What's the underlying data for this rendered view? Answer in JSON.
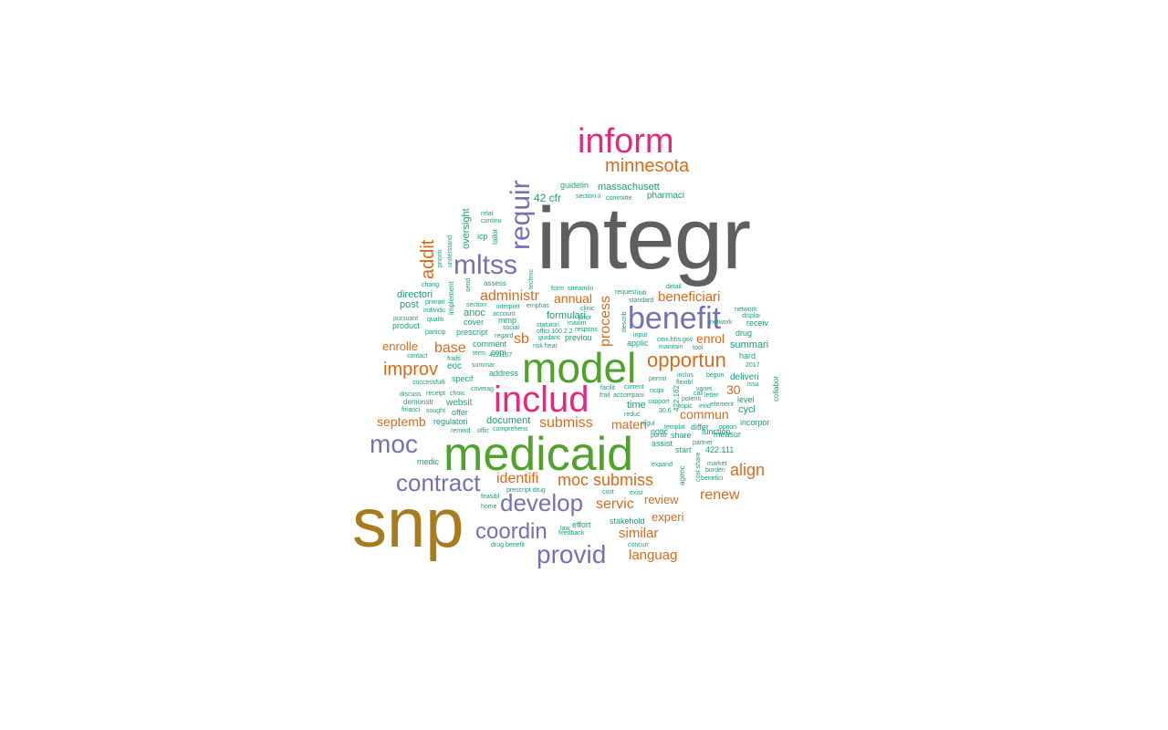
{
  "palette": {
    "gray": "#5f5f5f",
    "olive": "#a67c1f",
    "green": "#4fa32a",
    "magenta": "#e2297e",
    "purple": "#7471b3",
    "orange": "#d96a1a",
    "teal": "#1b9e77"
  },
  "words": [
    {
      "text": "integr"
    },
    {
      "text": "snp"
    },
    {
      "text": "medicaid"
    },
    {
      "text": "model"
    },
    {
      "text": "includ"
    },
    {
      "text": "inform"
    },
    {
      "text": "benefit"
    },
    {
      "text": "mltss"
    },
    {
      "text": "requir"
    },
    {
      "text": "moc"
    },
    {
      "text": "minnesota"
    },
    {
      "text": "develop"
    },
    {
      "text": "contract"
    },
    {
      "text": "provid"
    },
    {
      "text": "coordin"
    },
    {
      "text": "opportun"
    },
    {
      "text": "improv"
    },
    {
      "text": "addit"
    },
    {
      "text": "administr"
    },
    {
      "text": "beneficiari"
    },
    {
      "text": "process"
    },
    {
      "text": "align"
    },
    {
      "text": "renew"
    },
    {
      "text": "submiss"
    },
    {
      "text": "moc submiss"
    },
    {
      "text": "identifi"
    },
    {
      "text": "servic"
    },
    {
      "text": "base"
    },
    {
      "text": "sb"
    },
    {
      "text": "enrol"
    },
    {
      "text": "enrolle"
    },
    {
      "text": "annual"
    },
    {
      "text": "septemb"
    },
    {
      "text": "commun"
    },
    {
      "text": "materi"
    },
    {
      "text": "review"
    },
    {
      "text": "experi"
    },
    {
      "text": "similar"
    },
    {
      "text": "languag"
    },
    {
      "text": "30"
    },
    {
      "text": "massachusett"
    },
    {
      "text": "pharmaci"
    },
    {
      "text": "42 cfr"
    },
    {
      "text": "guidelin"
    },
    {
      "text": "oversight"
    },
    {
      "text": "directori"
    },
    {
      "text": "post"
    },
    {
      "text": "product"
    },
    {
      "text": "anoc"
    },
    {
      "text": "cover"
    },
    {
      "text": "mmp"
    },
    {
      "text": "formulari"
    },
    {
      "text": "eoc"
    },
    {
      "text": "specif"
    },
    {
      "text": "websit"
    },
    {
      "text": "offer"
    },
    {
      "text": "regulatori"
    },
    {
      "text": "document"
    },
    {
      "text": "summari"
    },
    {
      "text": "receiv"
    },
    {
      "text": "drug"
    },
    {
      "text": "deliveri"
    },
    {
      "text": "level"
    },
    {
      "text": "cycl"
    },
    {
      "text": "incorpor"
    },
    {
      "text": "measur"
    },
    {
      "text": "function"
    },
    {
      "text": "applic"
    },
    {
      "text": "previou"
    },
    {
      "text": "notic"
    },
    {
      "text": "time"
    },
    {
      "text": "assist"
    },
    {
      "text": "start"
    },
    {
      "text": "share"
    },
    {
      "text": "differ"
    },
    {
      "text": "422.111"
    },
    {
      "text": "agenc"
    },
    {
      "text": "stakehold"
    },
    {
      "text": "effort"
    },
    {
      "text": "comment"
    },
    {
      "text": "copi"
    },
    {
      "text": "address"
    },
    {
      "text": "prescript"
    },
    {
      "text": "medic"
    },
    {
      "text": "demonstr"
    },
    {
      "text": "collabor"
    },
    {
      "text": "hard"
    },
    {
      "text": "implement"
    },
    {
      "text": "technic"
    },
    {
      "text": "icp"
    },
    {
      "text": "assess"
    },
    {
      "text": "tailor"
    },
    {
      "text": "section ii"
    },
    {
      "text": "committe"
    },
    {
      "text": "422.162"
    },
    {
      "text": "section"
    },
    {
      "text": "account"
    },
    {
      "text": "social"
    },
    {
      "text": "particip"
    },
    {
      "text": "pursuant"
    },
    {
      "text": "qualiti"
    },
    {
      "text": "individu"
    },
    {
      "text": "primari"
    },
    {
      "text": "chang"
    },
    {
      "text": "relat"
    },
    {
      "text": "continu"
    },
    {
      "text": "prioriti"
    },
    {
      "text": "understand"
    },
    {
      "text": "form"
    },
    {
      "text": "streamlin"
    },
    {
      "text": "request"
    },
    {
      "text": "standard"
    },
    {
      "text": "detail"
    },
    {
      "text": "network"
    },
    {
      "text": "displai"
    },
    {
      "text": "2017"
    },
    {
      "text": "issu"
    },
    {
      "text": "begun"
    },
    {
      "text": "permit"
    },
    {
      "text": "inclus"
    },
    {
      "text": "flexibl"
    },
    {
      "text": "variet"
    },
    {
      "text": "letter"
    },
    {
      "text": "potenti"
    },
    {
      "text": "element"
    },
    {
      "text": "option"
    },
    {
      "text": "partner"
    },
    {
      "text": "market"
    },
    {
      "text": "burden"
    },
    {
      "text": "benefici"
    },
    {
      "text": "cost share"
    },
    {
      "text": "expand"
    },
    {
      "text": "exist"
    },
    {
      "text": "cost"
    },
    {
      "text": "feedback"
    },
    {
      "text": "concurr"
    },
    {
      "text": "drug benefit"
    },
    {
      "text": "home"
    },
    {
      "text": "feasibl"
    },
    {
      "text": "remind"
    },
    {
      "text": "offic"
    },
    {
      "text": "comprehens"
    },
    {
      "text": "prescript drug"
    },
    {
      "text": "financi"
    },
    {
      "text": "sought"
    },
    {
      "text": "discuss"
    },
    {
      "text": "receipt"
    },
    {
      "text": "choic"
    },
    {
      "text": "successfulli"
    },
    {
      "text": "summar"
    },
    {
      "text": "contact"
    },
    {
      "text": "frailti"
    },
    {
      "text": "422.107"
    },
    {
      "text": "interpret"
    },
    {
      "text": "emphas"
    },
    {
      "text": "clinic"
    },
    {
      "text": "statutori"
    },
    {
      "text": "maxim"
    },
    {
      "text": "respons"
    },
    {
      "text": "guidanc"
    },
    {
      "text": "risk hear"
    },
    {
      "text": "offici 100.2.2"
    },
    {
      "text": "cms.hhs.gov"
    },
    {
      "text": "maintain"
    },
    {
      "text": "tool"
    },
    {
      "text": "input"
    },
    {
      "text": "ncqa"
    },
    {
      "text": "call"
    },
    {
      "text": "facilit"
    },
    {
      "text": "frail"
    },
    {
      "text": "accompani"
    },
    {
      "text": "current"
    },
    {
      "text": "reduc"
    },
    {
      "text": "30.6"
    },
    {
      "text": "templat"
    },
    {
      "text": "pursu"
    },
    {
      "text": "coverag"
    },
    {
      "text": "term"
    },
    {
      "text": "regard"
    },
    {
      "text": "law"
    },
    {
      "text": "support"
    },
    {
      "text": "topic"
    },
    {
      "text": "evid"
    },
    {
      "text": "network"
    },
    {
      "text": "describ"
    },
    {
      "text": "initi"
    },
    {
      "text": "prior"
    },
    {
      "text": "send"
    },
    {
      "text": "regul"
    }
  ]
}
